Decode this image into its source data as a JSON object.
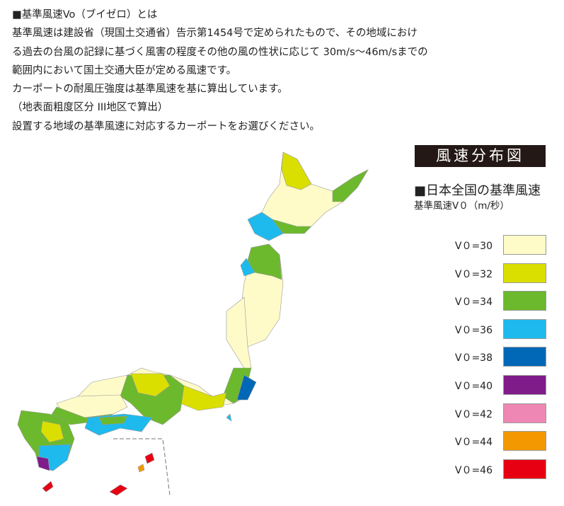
{
  "intro": {
    "lines": [
      "■基準風速Vo（ブイゼロ）とは",
      "基準風速は建設省（現国土交通省）告示第1454号で定められたもので、その地域におけ",
      "る過去の台風の記録に基づく風害の程度その他の風の性状に応じて 30m/s〜46m/sまでの",
      "範囲内において国土交通大臣が定める風速です。",
      "カーポートの耐風圧強度は基準風速を基に算出しています。",
      "（地表面粗度区分 III地区で算出）",
      "設置する地域の基準風速に対応するカーポートをお選びください。"
    ]
  },
  "map": {
    "title": "風速分布図",
    "subtitle": "■日本全国の基準風速",
    "unit_label": "基準風速V０（m/秒）",
    "legend": [
      {
        "label": "V０=30",
        "color": "#fffbc8"
      },
      {
        "label": "V０=32",
        "color": "#dadf00"
      },
      {
        "label": "V０=34",
        "color": "#6cb92d"
      },
      {
        "label": "V０=36",
        "color": "#1ebaee"
      },
      {
        "label": "V０=38",
        "color": "#0068b7"
      },
      {
        "label": "V０=40",
        "color": "#801b8a"
      },
      {
        "label": "V０=42",
        "color": "#ee87b4"
      },
      {
        "label": "V０=44",
        "color": "#f39800"
      },
      {
        "label": "V０=46",
        "color": "#e60012"
      }
    ]
  }
}
